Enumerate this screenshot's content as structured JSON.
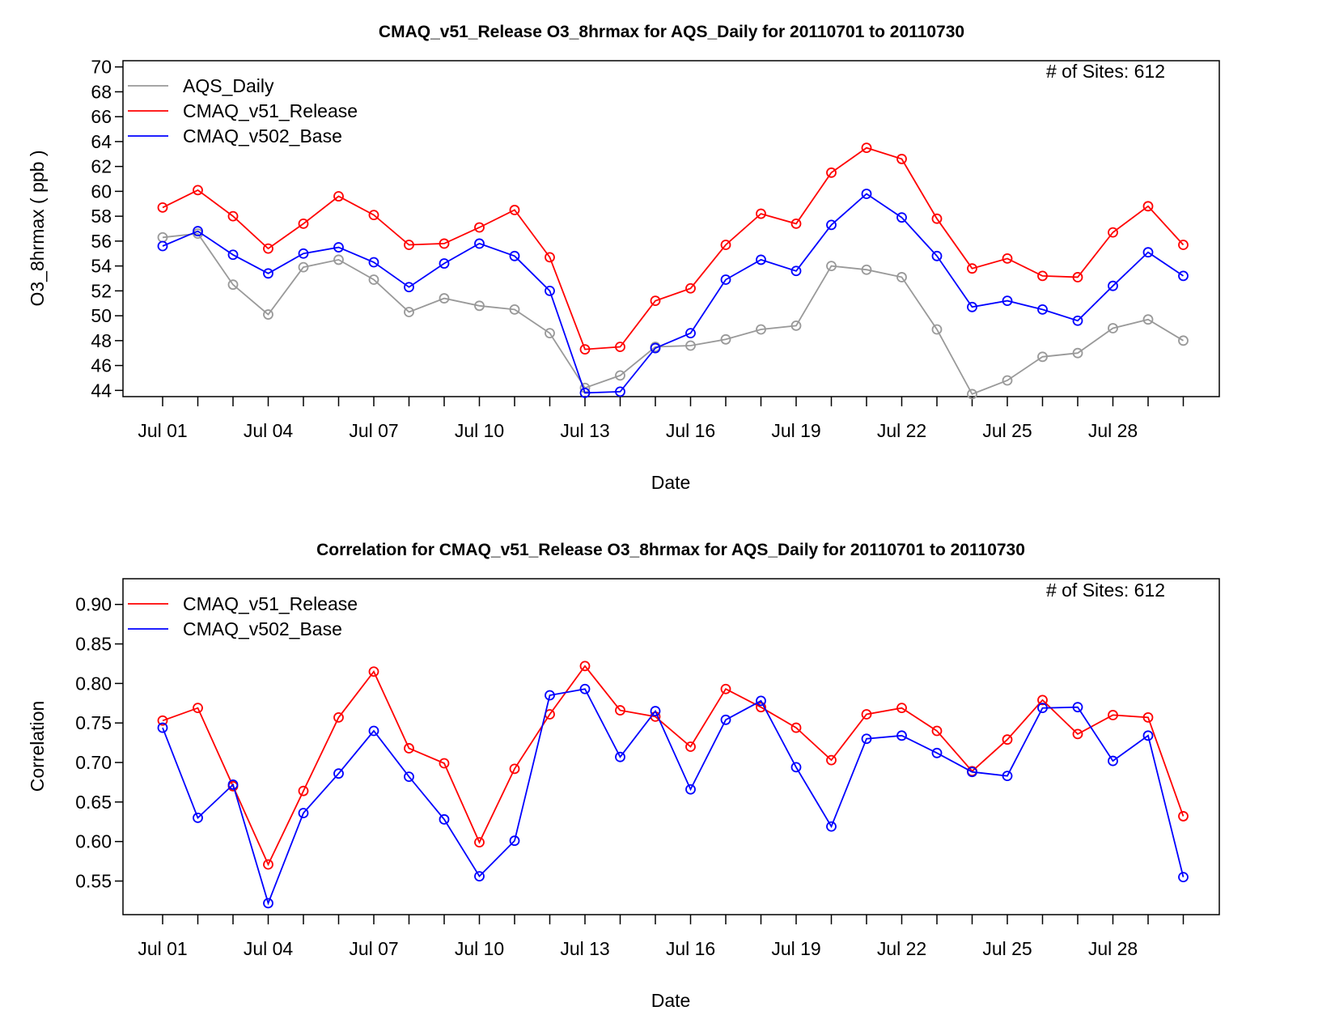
{
  "chart_data": [
    {
      "type": "line",
      "title": "CMAQ_v51_Release O3_8hrmax for AQS_Daily for 20110701 to 20110730",
      "xlabel": "Date",
      "ylabel": "O3_8hrmax ( ppb )",
      "annotation": "# of Sites: 612",
      "x": [
        "2011-07-01",
        "2011-07-02",
        "2011-07-03",
        "2011-07-04",
        "2011-07-05",
        "2011-07-06",
        "2011-07-07",
        "2011-07-08",
        "2011-07-09",
        "2011-07-10",
        "2011-07-11",
        "2011-07-12",
        "2011-07-13",
        "2011-07-14",
        "2011-07-15",
        "2011-07-16",
        "2011-07-17",
        "2011-07-18",
        "2011-07-19",
        "2011-07-20",
        "2011-07-21",
        "2011-07-22",
        "2011-07-23",
        "2011-07-24",
        "2011-07-25",
        "2011-07-26",
        "2011-07-27",
        "2011-07-28",
        "2011-07-29",
        "2011-07-30"
      ],
      "x_tick_labels": [
        "Jul 01",
        "",
        "",
        "Jul 04",
        "",
        "",
        "Jul 07",
        "",
        "",
        "Jul 10",
        "",
        "",
        "Jul 13",
        "",
        "",
        "Jul 16",
        "",
        "",
        "Jul 19",
        "",
        "",
        "Jul 22",
        "",
        "",
        "Jul 25",
        "",
        "",
        "Jul 28",
        "",
        ""
      ],
      "ylim": [
        43.5,
        70.5
      ],
      "y_ticks": [
        44,
        46,
        48,
        50,
        52,
        54,
        56,
        58,
        60,
        62,
        64,
        66,
        68,
        70
      ],
      "y_tick_labels": [
        "44",
        "46",
        "48",
        "50",
        "52",
        "54",
        "56",
        "58",
        "60",
        "62",
        "64",
        "66",
        "68",
        "70"
      ],
      "legend_position": "top-left",
      "grid": false,
      "series": [
        {
          "name": "AQS_Daily",
          "color": "#999999",
          "values": [
            56.3,
            56.6,
            52.5,
            50.1,
            53.9,
            54.5,
            52.9,
            50.3,
            51.4,
            50.8,
            50.5,
            48.6,
            44.2,
            45.2,
            47.5,
            47.6,
            48.1,
            48.9,
            49.2,
            54.0,
            53.7,
            53.1,
            48.9,
            43.7,
            44.8,
            46.7,
            47.0,
            49.0,
            49.7,
            48.0
          ]
        },
        {
          "name": "CMAQ_v51_Release",
          "color": "#ff0000",
          "values": [
            58.7,
            60.1,
            58.0,
            55.4,
            57.4,
            59.6,
            58.1,
            55.7,
            55.8,
            57.1,
            58.5,
            54.7,
            47.3,
            47.5,
            51.2,
            52.2,
            55.7,
            58.2,
            57.4,
            61.5,
            63.5,
            62.6,
            57.8,
            53.8,
            54.6,
            53.2,
            53.1,
            56.7,
            58.8,
            55.7
          ]
        },
        {
          "name": "CMAQ_v502_Base",
          "color": "#0000ff",
          "values": [
            55.6,
            56.8,
            54.9,
            53.4,
            55.0,
            55.5,
            54.3,
            52.3,
            54.2,
            55.8,
            54.8,
            52.0,
            43.8,
            43.9,
            47.4,
            48.6,
            52.9,
            54.5,
            53.6,
            57.3,
            59.8,
            57.9,
            54.8,
            50.7,
            51.2,
            50.5,
            49.6,
            52.4,
            55.1,
            53.2
          ]
        }
      ]
    },
    {
      "type": "line",
      "title": "Correlation for CMAQ_v51_Release O3_8hrmax for AQS_Daily for 20110701 to 20110730",
      "xlabel": "Date",
      "ylabel": "Correlation",
      "annotation": "# of Sites: 612",
      "x": [
        "2011-07-01",
        "2011-07-02",
        "2011-07-03",
        "2011-07-04",
        "2011-07-05",
        "2011-07-06",
        "2011-07-07",
        "2011-07-08",
        "2011-07-09",
        "2011-07-10",
        "2011-07-11",
        "2011-07-12",
        "2011-07-13",
        "2011-07-14",
        "2011-07-15",
        "2011-07-16",
        "2011-07-17",
        "2011-07-18",
        "2011-07-19",
        "2011-07-20",
        "2011-07-21",
        "2011-07-22",
        "2011-07-23",
        "2011-07-24",
        "2011-07-25",
        "2011-07-26",
        "2011-07-27",
        "2011-07-28",
        "2011-07-29",
        "2011-07-30"
      ],
      "x_tick_labels": [
        "Jul 01",
        "",
        "",
        "Jul 04",
        "",
        "",
        "Jul 07",
        "",
        "",
        "Jul 10",
        "",
        "",
        "Jul 13",
        "",
        "",
        "Jul 16",
        "",
        "",
        "Jul 19",
        "",
        "",
        "Jul 22",
        "",
        "",
        "Jul 25",
        "",
        "",
        "Jul 28",
        "",
        ""
      ],
      "ylim": [
        0.5075,
        0.9325
      ],
      "y_ticks": [
        0.55,
        0.6,
        0.65,
        0.7,
        0.75,
        0.8,
        0.85,
        0.9
      ],
      "y_tick_labels": [
        "0.55",
        "0.60",
        "0.65",
        "0.70",
        "0.75",
        "0.80",
        "0.85",
        "0.90"
      ],
      "legend_position": "top-left",
      "grid": false,
      "series": [
        {
          "name": "CMAQ_v51_Release",
          "color": "#ff0000",
          "values": [
            0.753,
            0.769,
            0.67,
            0.571,
            0.664,
            0.757,
            0.815,
            0.718,
            0.699,
            0.599,
            0.692,
            0.761,
            0.822,
            0.766,
            0.758,
            0.72,
            0.793,
            0.77,
            0.744,
            0.703,
            0.761,
            0.769,
            0.74,
            0.689,
            0.729,
            0.779,
            0.736,
            0.76,
            0.757,
            0.632
          ]
        },
        {
          "name": "CMAQ_v502_Base",
          "color": "#0000ff",
          "values": [
            0.744,
            0.63,
            0.672,
            0.522,
            0.636,
            0.686,
            0.74,
            0.682,
            0.628,
            0.556,
            0.601,
            0.785,
            0.793,
            0.707,
            0.765,
            0.666,
            0.754,
            0.778,
            0.694,
            0.619,
            0.73,
            0.734,
            0.712,
            0.688,
            0.683,
            0.769,
            0.77,
            0.702,
            0.734,
            0.555
          ]
        }
      ]
    }
  ]
}
